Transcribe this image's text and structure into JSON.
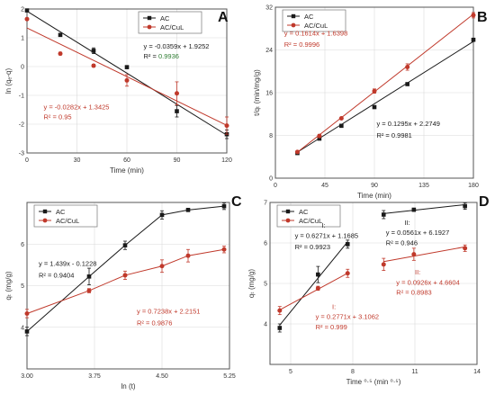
{
  "colors": {
    "black_series": "#1a1a1a",
    "red_series": "#c0392b",
    "green_text": "#2e7d32",
    "axis": "#555555",
    "grid": "#d9d9d9"
  },
  "chart_data": [
    {
      "id": "A",
      "type": "line",
      "panel_label": "A",
      "xlabel": "Time (min)",
      "ylabel": "ln (qₑ-q)",
      "xlim": [
        0,
        120
      ],
      "ylim": [
        -3,
        2
      ],
      "xticks": [
        0,
        30,
        60,
        90,
        120
      ],
      "yticks": [
        -3,
        -2,
        -1,
        0,
        1,
        2
      ],
      "legend": {
        "position": "top-right",
        "entries": [
          "AC",
          "AC/CuL"
        ]
      },
      "series": [
        {
          "name": "AC",
          "color": "#1a1a1a",
          "marker": "square",
          "x": [
            0,
            20,
            40,
            60,
            90,
            120
          ],
          "y": [
            1.95,
            1.1,
            0.55,
            -0.02,
            -1.55,
            -2.35
          ],
          "err": [
            0,
            0.05,
            0.1,
            0.05,
            0.2,
            0.15
          ],
          "fit": [
            [
              0,
              1.9252
            ],
            [
              120,
              -2.3828
            ]
          ]
        },
        {
          "name": "AC/CuL",
          "color": "#c0392b",
          "marker": "circle",
          "x": [
            0,
            20,
            40,
            60,
            90,
            120
          ],
          "y": [
            1.65,
            0.45,
            0.03,
            -0.48,
            -0.93,
            -2.05
          ],
          "err": [
            0,
            0.05,
            0.05,
            0.2,
            0.4,
            0.3
          ],
          "fit": [
            [
              0,
              1.3425
            ],
            [
              120,
              -2.0415
            ]
          ]
        }
      ],
      "annotations": [
        {
          "text": "y = -0.0359x + 1.9252",
          "color": "#1a1a1a",
          "at": [
            70,
            0.62
          ]
        },
        {
          "text": "R² = 0.9936",
          "color": "#1a1a1a",
          "at": [
            70,
            0.28
          ],
          "highlight": "0.9936"
        },
        {
          "text": "y = -0.0282x + 1.3425",
          "color": "#c0392b",
          "at": [
            10,
            -1.48
          ]
        },
        {
          "text": "R² = 0.95",
          "color": "#c0392b",
          "at": [
            10,
            -1.83
          ]
        }
      ]
    },
    {
      "id": "B",
      "type": "line",
      "panel_label": "B",
      "xlabel": "Time (min)",
      "ylabel": "t/qₜ (min/mg/g)",
      "xlim": [
        0,
        180
      ],
      "ylim": [
        0,
        32
      ],
      "xticks": [
        0,
        45,
        90,
        135,
        180
      ],
      "yticks": [
        0,
        8,
        16,
        24,
        32
      ],
      "legend": {
        "position": "top-left",
        "entries": [
          "AC",
          "AC/CuL"
        ]
      },
      "series": [
        {
          "name": "AC",
          "color": "#1a1a1a",
          "marker": "square",
          "x": [
            20,
            40,
            60,
            90,
            120,
            180
          ],
          "y": [
            4.7,
            7.4,
            9.8,
            13.3,
            17.6,
            25.9
          ],
          "err": [
            0,
            0,
            0,
            0,
            0,
            0
          ],
          "fit": [
            [
              20,
              4.8649
            ],
            [
              180,
              25.5849
            ]
          ]
        },
        {
          "name": "AC/CuL",
          "color": "#c0392b",
          "marker": "circle",
          "x": [
            20,
            40,
            60,
            90,
            120,
            180
          ],
          "y": [
            4.9,
            7.9,
            11.2,
            16.3,
            20.8,
            30.5
          ],
          "err": [
            0,
            0.3,
            0,
            0.4,
            0.6,
            0.5
          ],
          "fit": [
            [
              20,
              4.8678
            ],
            [
              180,
              30.6918
            ]
          ]
        }
      ],
      "annotations": [
        {
          "text": "y = 0.1614x + 1.6398",
          "color": "#c0392b",
          "at": [
            8,
            26.7
          ]
        },
        {
          "text": "R² = 0.9996",
          "color": "#c0392b",
          "at": [
            8,
            24.6
          ]
        },
        {
          "text": "y = 0.1295x + 2.2749",
          "color": "#1a1a1a",
          "at": [
            92,
            9.8
          ]
        },
        {
          "text": "R² = 0.9981",
          "color": "#1a1a1a",
          "at": [
            92,
            7.6
          ]
        }
      ]
    },
    {
      "id": "C",
      "type": "line",
      "panel_label": "C",
      "xlabel": "ln (t)",
      "ylabel": "qₜ (mg/g)",
      "xlim": [
        3,
        5.25
      ],
      "ylim": [
        3,
        7
      ],
      "xticks": [
        3,
        3.75,
        4.5,
        5.25
      ],
      "xtick_labels": [
        "3.00",
        "3.75",
        "4.50",
        "5.25"
      ],
      "yticks": [
        4,
        5,
        6
      ],
      "legend": {
        "position": "top-left",
        "entries": [
          "AC",
          "AC/CuL"
        ]
      },
      "series": [
        {
          "name": "AC",
          "color": "#1a1a1a",
          "marker": "square",
          "x": [
            3.0,
            3.69,
            4.09,
            4.5,
            4.79,
            5.19
          ],
          "y": [
            3.9,
            5.22,
            5.97,
            6.7,
            6.82,
            6.91
          ],
          "err": [
            0.1,
            0.2,
            0.1,
            0.1,
            0.04,
            0.08
          ]
        },
        {
          "name": "AC/CuL",
          "color": "#c0392b",
          "marker": "circle",
          "x": [
            3.0,
            3.69,
            4.09,
            4.5,
            4.79,
            5.19
          ],
          "y": [
            4.33,
            4.88,
            5.25,
            5.47,
            5.72,
            5.87
          ],
          "err": [
            0.1,
            0.05,
            0.1,
            0.15,
            0.15,
            0.08
          ]
        }
      ],
      "annotations": [
        {
          "text": "y = 1.439x - 0.1228",
          "color": "#1a1a1a",
          "at": [
            3.13,
            5.48
          ]
        },
        {
          "text": "R² = 0.9404",
          "color": "#1a1a1a",
          "at": [
            3.13,
            5.2
          ]
        },
        {
          "text": "y = 0.7238x + 2.2151",
          "color": "#c0392b",
          "at": [
            4.22,
            4.33
          ]
        },
        {
          "text": "R² = 0.9876",
          "color": "#c0392b",
          "at": [
            4.22,
            4.05
          ]
        }
      ]
    },
    {
      "id": "D",
      "type": "line",
      "panel_label": "D",
      "xlabel": "Time ⁰·⁵ (min ⁰·⁵)",
      "ylabel": "qₜ (mg/g)",
      "xlim": [
        4,
        14
      ],
      "ylim": [
        3,
        7
      ],
      "xticks": [
        5,
        8,
        11,
        14
      ],
      "yticks": [
        4,
        5,
        6,
        7
      ],
      "legend": {
        "position": "top-left",
        "entries": [
          "AC",
          "AC/CuL"
        ]
      },
      "series": [
        {
          "name": "AC",
          "color": "#1a1a1a",
          "marker": "square",
          "x": [
            4.47,
            6.32,
            7.75,
            9.49,
            10.95,
            13.42
          ],
          "y": [
            3.9,
            5.22,
            5.97,
            6.7,
            6.82,
            6.91
          ],
          "err": [
            0.1,
            0.2,
            0.1,
            0.1,
            0.04,
            0.08
          ],
          "fit": [
            [
              4.47,
              3.9712
            ],
            [
              7.75,
              6.0285
            ]
          ],
          "fit2": [
            [
              9.49,
              6.7251
            ],
            [
              13.42,
              6.9456
            ]
          ]
        },
        {
          "name": "AC/CuL",
          "color": "#c0392b",
          "marker": "circle",
          "x": [
            4.47,
            6.32,
            7.75,
            9.49,
            10.95,
            13.42
          ],
          "y": [
            4.33,
            4.88,
            5.25,
            5.47,
            5.72,
            5.87
          ],
          "err": [
            0.1,
            0.05,
            0.1,
            0.15,
            0.15,
            0.08
          ],
          "fit": [
            [
              4.47,
              4.3449
            ],
            [
              7.75,
              5.2538
            ]
          ],
          "fit2": [
            [
              9.49,
              5.5392
            ],
            [
              13.42,
              5.9031
            ]
          ]
        }
      ],
      "annotations": [
        {
          "text": "I:",
          "color": "#1a1a1a",
          "at": [
            6.5,
            6.38
          ]
        },
        {
          "text": "y = 0.6271x + 1.1685",
          "color": "#1a1a1a",
          "at": [
            5.2,
            6.12
          ]
        },
        {
          "text": "R² = 0.9923",
          "color": "#1a1a1a",
          "at": [
            5.2,
            5.85
          ]
        },
        {
          "text": "II:",
          "color": "#1a1a1a",
          "at": [
            10.5,
            6.45
          ]
        },
        {
          "text": "y = 0.0561x + 6.1927",
          "color": "#1a1a1a",
          "at": [
            9.6,
            6.2
          ]
        },
        {
          "text": "R² = 0.946",
          "color": "#1a1a1a",
          "at": [
            9.6,
            5.95
          ]
        },
        {
          "text": "II:",
          "color": "#c0392b",
          "at": [
            11.0,
            5.22
          ]
        },
        {
          "text": "y = 0.0926x + 4.6604",
          "color": "#c0392b",
          "at": [
            10.1,
            4.97
          ]
        },
        {
          "text": "R² = 0.8983",
          "color": "#c0392b",
          "at": [
            10.1,
            4.72
          ]
        },
        {
          "text": "I:",
          "color": "#c0392b",
          "at": [
            7.0,
            4.37
          ]
        },
        {
          "text": "y = 0.2771x + 3.1062",
          "color": "#c0392b",
          "at": [
            6.2,
            4.12
          ]
        },
        {
          "text": "R² = 0.999",
          "color": "#c0392b",
          "at": [
            6.2,
            3.87
          ]
        }
      ]
    }
  ]
}
